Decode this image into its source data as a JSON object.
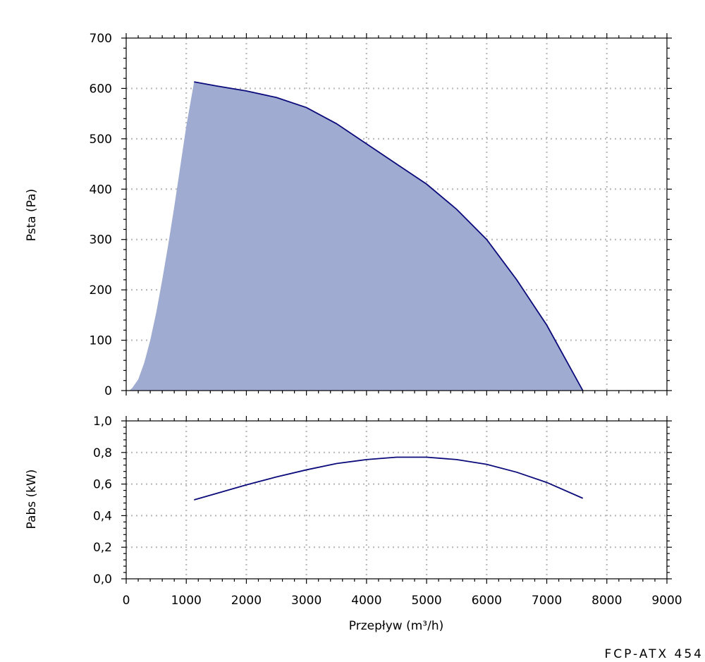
{
  "model_label": "FCP-ATX 454",
  "colors": {
    "curve": "#0a0a7a",
    "fill": "#9fabd0",
    "grid": "#bbbbbb",
    "axis": "#000000"
  },
  "chart_data": [
    {
      "type": "area",
      "ylabel": "Psta (Pa)",
      "xlim": [
        0,
        9000
      ],
      "ylim": [
        0,
        700
      ],
      "grid": true,
      "xticks": [
        0,
        1000,
        2000,
        3000,
        4000,
        5000,
        6000,
        7000,
        8000,
        9000
      ],
      "yticks": [
        0,
        100,
        200,
        300,
        400,
        500,
        600,
        700
      ],
      "ytick_labels": [
        "0",
        "100",
        "200",
        "300",
        "400",
        "500",
        "600",
        "700"
      ],
      "envelope_left": {
        "x": [
          50,
          100,
          200,
          300,
          400,
          500,
          600,
          700,
          800,
          900,
          1000,
          1130
        ],
        "y": [
          0,
          5,
          22,
          55,
          100,
          155,
          220,
          290,
          365,
          445,
          525,
          613
        ]
      },
      "series": [
        {
          "x": [
            1130,
            1500,
            2000,
            2500,
            3000,
            3500,
            4000,
            4500,
            5000,
            5500,
            6000,
            6500,
            7000,
            7600
          ],
          "y": [
            613,
            605,
            595,
            582,
            562,
            530,
            490,
            450,
            410,
            360,
            300,
            220,
            130,
            0
          ]
        }
      ]
    },
    {
      "type": "line",
      "xlabel": "Przepływ (m³/h)",
      "ylabel": "Pabs (kW)",
      "xlim": [
        0,
        9000
      ],
      "ylim": [
        0,
        1.0
      ],
      "grid": true,
      "xticks": [
        0,
        1000,
        2000,
        3000,
        4000,
        5000,
        6000,
        7000,
        8000,
        9000
      ],
      "xtick_labels": [
        "0",
        "1000",
        "2000",
        "3000",
        "4000",
        "5000",
        "6000",
        "7000",
        "8000",
        "9000"
      ],
      "yticks": [
        0,
        0.2,
        0.4,
        0.6,
        0.8,
        1.0
      ],
      "ytick_labels": [
        "0,0",
        "0,2",
        "0,4",
        "0,6",
        "0,8",
        "1,0"
      ],
      "series": [
        {
          "x": [
            1130,
            1500,
            2000,
            2500,
            3000,
            3500,
            4000,
            4500,
            5000,
            5500,
            6000,
            6500,
            7000,
            7600
          ],
          "y": [
            0.5,
            0.54,
            0.595,
            0.645,
            0.69,
            0.73,
            0.755,
            0.77,
            0.77,
            0.755,
            0.725,
            0.675,
            0.61,
            0.51
          ]
        }
      ]
    }
  ]
}
